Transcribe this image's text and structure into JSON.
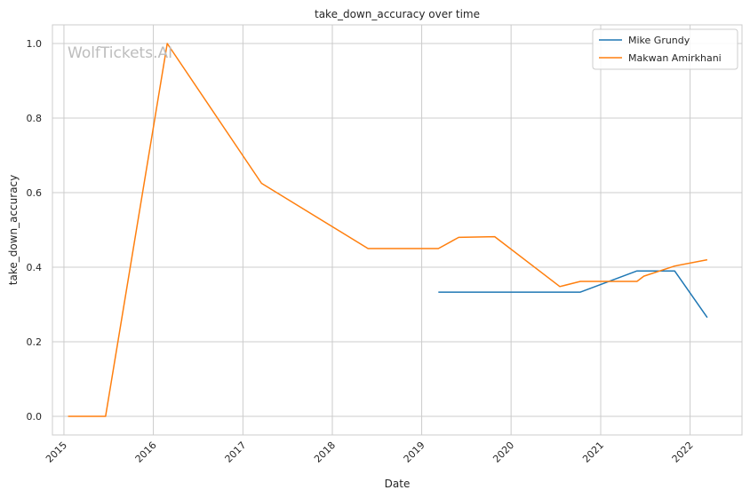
{
  "chart_data": {
    "type": "line",
    "title": "take_down_accuracy over time",
    "xlabel": "Date",
    "ylabel": "take_down_accuracy",
    "watermark": "WolfTickets.AI",
    "xlim": [
      "2014-11-15",
      "2022-08-01"
    ],
    "ylim": [
      -0.05,
      1.05
    ],
    "x_ticks": [
      "2015",
      "2016",
      "2017",
      "2018",
      "2019",
      "2020",
      "2021",
      "2022"
    ],
    "y_ticks": [
      "0.0",
      "0.2",
      "0.4",
      "0.6",
      "0.8",
      "1.0"
    ],
    "grid": true,
    "legend_position": "top-right",
    "series": [
      {
        "name": "Mike Grundy",
        "color": "#1f77b4",
        "points": [
          {
            "x": "2019-03-10",
            "y": 0.333
          },
          {
            "x": "2020-10-10",
            "y": 0.333
          },
          {
            "x": "2021-05-29",
            "y": 0.39
          },
          {
            "x": "2021-10-30",
            "y": 0.39
          },
          {
            "x": "2022-03-12",
            "y": 0.265
          }
        ]
      },
      {
        "name": "Makwan Amirkhani",
        "color": "#ff7f0e",
        "points": [
          {
            "x": "2015-01-18",
            "y": 0.0
          },
          {
            "x": "2015-06-20",
            "y": 0.0
          },
          {
            "x": "2016-02-27",
            "y": 1.0
          },
          {
            "x": "2017-03-18",
            "y": 0.625
          },
          {
            "x": "2018-05-27",
            "y": 0.45
          },
          {
            "x": "2019-03-10",
            "y": 0.45
          },
          {
            "x": "2019-06-01",
            "y": 0.48
          },
          {
            "x": "2019-10-26",
            "y": 0.482
          },
          {
            "x": "2020-07-18",
            "y": 0.348
          },
          {
            "x": "2020-10-10",
            "y": 0.362
          },
          {
            "x": "2021-05-29",
            "y": 0.362
          },
          {
            "x": "2021-06-26",
            "y": 0.376
          },
          {
            "x": "2021-10-30",
            "y": 0.403
          },
          {
            "x": "2022-03-12",
            "y": 0.42
          }
        ]
      }
    ]
  }
}
